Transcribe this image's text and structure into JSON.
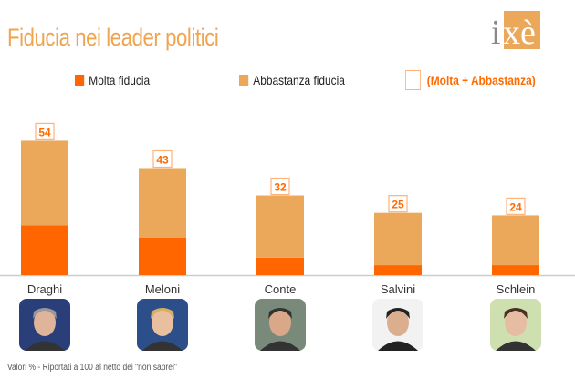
{
  "chart_data": {
    "type": "bar",
    "stacked": true,
    "title": "Fiducia nei leader politici",
    "categories": [
      "Draghi",
      "Meloni",
      "Conte",
      "Salvini",
      "Schlein"
    ],
    "series": [
      {
        "name": "Molta fiducia",
        "color": "#ff6600",
        "values": [
          20,
          15,
          7,
          4,
          4
        ]
      },
      {
        "name": "Abbastanza fiducia",
        "color": "#eca85a",
        "values": [
          34,
          28,
          25,
          21,
          20
        ]
      }
    ],
    "totals": {
      "name": "(Molta + Abbastanza)",
      "values": [
        54,
        43,
        32,
        25,
        24
      ]
    },
    "ylim": [
      0,
      60
    ],
    "grid": false,
    "legend": "top",
    "footnote": "Valori % - Riportati a 100 al netto dei \"non saprei\""
  },
  "logo": {
    "text": "ixè",
    "color": "#eca85a"
  }
}
